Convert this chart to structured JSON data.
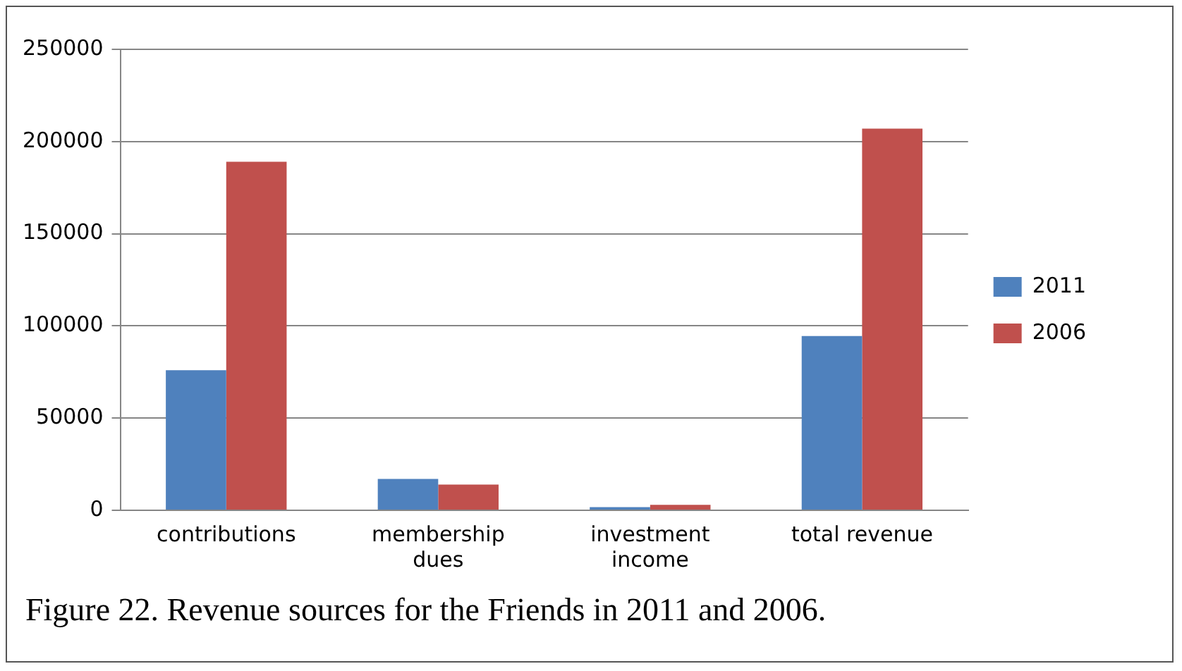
{
  "chart_data": {
    "type": "bar",
    "categories": [
      "contributions",
      "membership\ndues",
      "investment\nincome",
      "total revenue"
    ],
    "series": [
      {
        "name": "2011",
        "color": "#4f81bd",
        "values": [
          76000,
          17000,
          1700,
          94500
        ]
      },
      {
        "name": "2006",
        "color": "#c0504d",
        "values": [
          189000,
          14000,
          3000,
          207000
        ]
      }
    ],
    "ylim": [
      0,
      250000
    ],
    "yticks": [
      0,
      50000,
      100000,
      150000,
      200000,
      250000
    ],
    "grid": "y",
    "legend": "right",
    "annotations": [
      "Figure 22. Revenue sources for the Friends in 2011 and 2006."
    ]
  }
}
